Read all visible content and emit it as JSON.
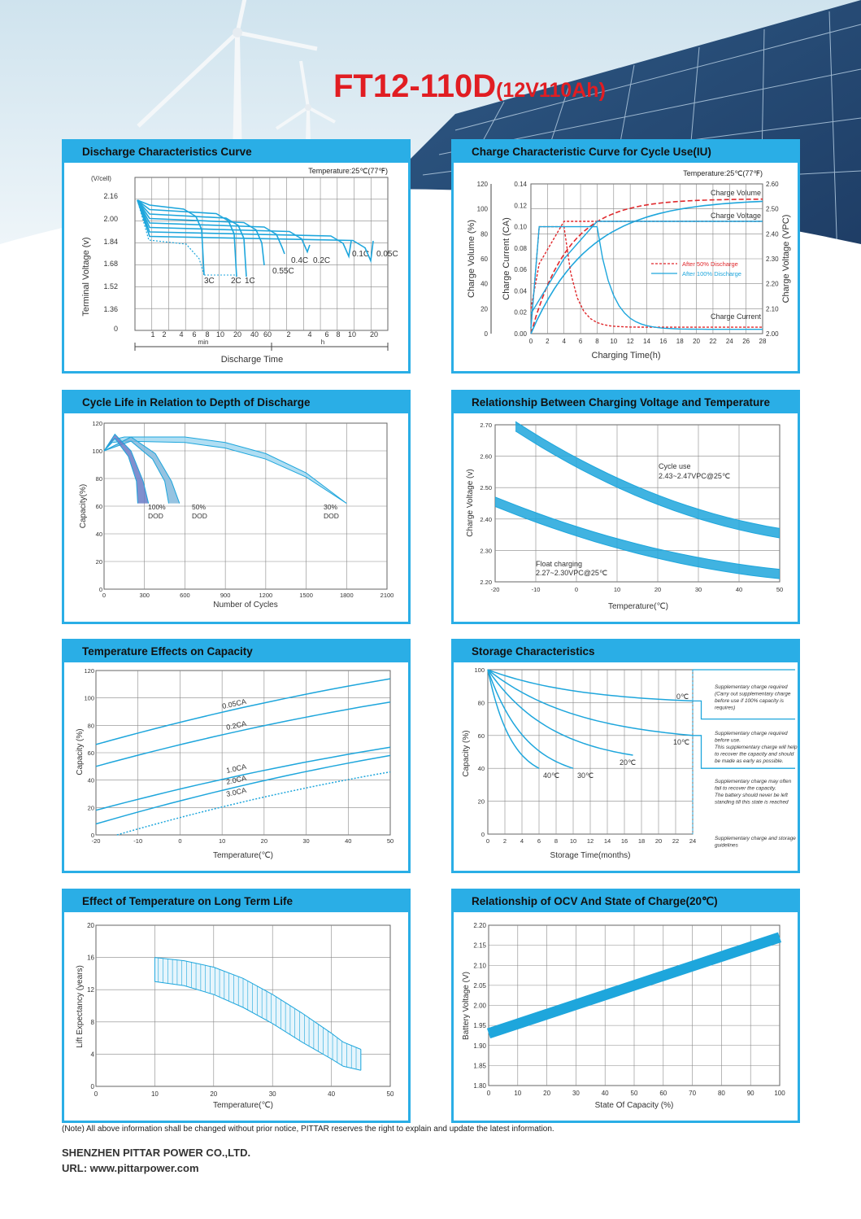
{
  "header": {
    "model": "FT12-110D",
    "spec": "(12V110Ah)"
  },
  "panels": {
    "discharge": {
      "title": "Discharge Characteristics Curve"
    },
    "charge": {
      "title": "Charge Characteristic Curve for Cycle Use(IU)"
    },
    "cycle": {
      "title": "Cycle Life in Relation to Depth of Discharge"
    },
    "chargetemp": {
      "title": "Relationship Between Charging Voltage and Temperature"
    },
    "tempcap": {
      "title": "Temperature Effects on Capacity"
    },
    "storage": {
      "title": "Storage Characteristics"
    },
    "life": {
      "title": "Effect of Temperature on Long Term Life"
    },
    "ocv": {
      "title": "Relationship of OCV And State of Charge(20℃)"
    }
  },
  "footer": {
    "note": "(Note) All above information shall be changed without prior notice, PITTAR reserves the right to explain and update the latest information.",
    "company": "SHENZHEN PITTAR POWER CO.,LTD.",
    "url": "URL: www.pittarpower.com"
  },
  "colors": {
    "accent": "#2aaee6",
    "title": "#e11d22",
    "curve": "#1ea6dc",
    "red": "#e0282c"
  },
  "chart_data": [
    {
      "id": "discharge",
      "type": "line",
      "note": "Temperature:25℃(77℉)",
      "ylabel": "Terminal Voltage  (v)",
      "yunit": "(V/cell)",
      "xlabel": "Discharge  Time",
      "yticks": [
        "2.16",
        "2.00",
        "1.84",
        "1.68",
        "1.52",
        "1.36",
        "0"
      ],
      "xticks_min": [
        "1",
        "2",
        "4",
        "6",
        "8",
        "10",
        "20",
        "40",
        "60"
      ],
      "xticks_h": [
        "2",
        "4",
        "6",
        "8",
        "10",
        "20"
      ],
      "unit_min": "min",
      "unit_h": "h",
      "series": [
        {
          "name": "3C",
          "end_voltage": 1.6
        },
        {
          "name": "2C",
          "end_voltage": 1.6
        },
        {
          "name": "1C",
          "end_voltage": 1.6
        },
        {
          "name": "0.55C",
          "end_voltage": 1.65
        },
        {
          "name": "0.4C",
          "end_voltage": 1.7
        },
        {
          "name": "0.2C",
          "end_voltage": 1.75
        },
        {
          "name": "0.1C",
          "end_voltage": 1.8
        },
        {
          "name": "0.05C",
          "end_voltage": 1.8
        }
      ]
    },
    {
      "id": "charge",
      "type": "line",
      "note": "Temperature:25℃(77℉)",
      "xlabel": "Charging Time(h)",
      "ylabel_left1": "Charge Volume (%)",
      "ylabel_left2": "Charge Current (CA)",
      "ylabel_right": "Charge Voltage (VPC)",
      "x": [
        0,
        2,
        4,
        6,
        8,
        10,
        12,
        14,
        16,
        18,
        20,
        22,
        24,
        26,
        28
      ],
      "volume_ticks": [
        "0",
        "20",
        "40",
        "60",
        "80",
        "100",
        "120"
      ],
      "current_ticks": [
        "0.00",
        "0.02",
        "0.04",
        "0.06",
        "0.08",
        "0.10",
        "0.12",
        "0.14"
      ],
      "voltage_ticks": [
        "2.00",
        "2.10",
        "2.20",
        "2.30",
        "2.40",
        "2.50",
        "2.60"
      ],
      "labels": {
        "volume": "Charge Volume",
        "voltage": "Charge Voltage",
        "current": "Charge Current"
      },
      "legend": [
        "After 50% Discharge",
        "After 100% Discharge"
      ]
    },
    {
      "id": "cycle",
      "type": "line",
      "xlabel": "Number of Cycles",
      "ylabel": "Capacity(%)",
      "x": [
        0,
        300,
        600,
        900,
        1200,
        1500,
        1800,
        2100
      ],
      "yticks": [
        0,
        20,
        40,
        60,
        80,
        100,
        120
      ],
      "series": [
        {
          "name": "100% DOD",
          "end_cycles": 320
        },
        {
          "name": "50% DOD",
          "end_cycles": 550
        },
        {
          "name": "30% DOD",
          "end_cycles": 1800
        }
      ],
      "labels": [
        [
          "100%",
          "DOD"
        ],
        [
          "50%",
          "DOD"
        ],
        [
          "30%",
          "DOD"
        ]
      ]
    },
    {
      "id": "chargetemp",
      "type": "area",
      "xlabel": "Temperature(℃)",
      "ylabel": "Charge Voltage  (v)",
      "x": [
        -20,
        -10,
        0,
        10,
        20,
        30,
        40,
        50
      ],
      "yticks": [
        "2.20",
        "2.30",
        "2.40",
        "2.50",
        "2.60",
        "2.70"
      ],
      "labels": {
        "cycle_name": "Cycle use",
        "cycle_range": "2.43~2.47VPC@25℃",
        "float_name": "Float charging",
        "float_range": "2.27~2.30VPC@25℃"
      },
      "series": [
        {
          "name": "Cycle use",
          "t": [
            -15,
            50
          ],
          "v_upper": [
            2.71,
            2.37
          ],
          "v_lower": [
            2.68,
            2.34
          ]
        },
        {
          "name": "Float charging",
          "t": [
            -20,
            50
          ],
          "v_upper": [
            2.47,
            2.24
          ],
          "v_lower": [
            2.44,
            2.21
          ]
        }
      ]
    },
    {
      "id": "tempcap",
      "type": "line",
      "xlabel": "Temperature(℃)",
      "ylabel": "Capacity  (%)",
      "x": [
        -20,
        -10,
        0,
        10,
        20,
        30,
        40,
        50
      ],
      "yticks": [
        0,
        20,
        40,
        60,
        80,
        100,
        120
      ],
      "series": [
        {
          "name": "0.05CA",
          "t": [
            -20,
            50
          ],
          "c": [
            66,
            114
          ]
        },
        {
          "name": "0.2CA",
          "t": [
            -20,
            50
          ],
          "c": [
            50,
            97
          ]
        },
        {
          "name": "1.0CA",
          "t": [
            -20,
            50
          ],
          "c": [
            18,
            64
          ]
        },
        {
          "name": "2.0CA",
          "t": [
            -20,
            50
          ],
          "c": [
            8,
            58
          ]
        },
        {
          "name": "3.0CA",
          "t": [
            -15,
            50
          ],
          "c": [
            0,
            46
          ]
        }
      ]
    },
    {
      "id": "storage",
      "type": "line",
      "xlabel": "Storage  Time(months)",
      "ylabel": "Capacity  (%)",
      "x": [
        0,
        2,
        4,
        6,
        8,
        10,
        12,
        14,
        16,
        18,
        20,
        22,
        24
      ],
      "yticks": [
        0,
        20,
        40,
        60,
        80,
        100
      ],
      "series": [
        {
          "name": "0℃",
          "end": [
            24,
            81
          ]
        },
        {
          "name": "10℃",
          "end": [
            24,
            60
          ]
        },
        {
          "name": "20℃",
          "end": [
            17,
            48
          ]
        },
        {
          "name": "30℃",
          "end": [
            10,
            40
          ]
        },
        {
          "name": "40℃",
          "end": [
            6,
            40
          ]
        }
      ],
      "notes": [
        [
          "Supplementary charge required",
          "(Carry out supplementary charge",
          "before use if 100% capacity is",
          "requires)"
        ],
        [
          "Supplementary charge required",
          "before use.",
          "This supplementary charge will help",
          "to recover the capacity and should",
          "be made  as early as possible."
        ],
        [
          "Supplementary charge may often",
          "fail to recover the capacity.",
          "The battery should never be left",
          "standing till this state is reached"
        ],
        [
          "Supplementary charge and storage",
          "guidelines"
        ]
      ]
    },
    {
      "id": "life",
      "type": "area",
      "xlabel": "Temperature(℃)",
      "ylabel": "Lift Expectancy  (years)",
      "x": [
        0,
        10,
        20,
        30,
        40,
        50
      ],
      "yticks": [
        0,
        4,
        8,
        12,
        16,
        20
      ],
      "band": {
        "t": [
          10,
          15,
          20,
          25,
          30,
          35,
          40,
          42,
          45
        ],
        "upper": [
          16,
          15.6,
          14.8,
          13.4,
          11.4,
          9.1,
          6.6,
          5.5,
          4.6
        ],
        "lower": [
          13,
          12.5,
          11.4,
          9.8,
          7.8,
          5.5,
          3.4,
          2.5,
          2
        ]
      }
    },
    {
      "id": "ocv",
      "type": "line",
      "xlabel": "State Of Capacity (%)",
      "ylabel": "Battery Voltage (V)",
      "x": [
        0,
        10,
        20,
        30,
        40,
        50,
        60,
        70,
        80,
        90,
        100
      ],
      "yticks": [
        "1.80",
        "1.85",
        "1.90",
        "1.95",
        "2.00",
        "2.05",
        "2.10",
        "2.15",
        "2.20"
      ],
      "series": [
        {
          "name": "OCV",
          "soc": [
            0,
            100
          ],
          "v": [
            1.93,
            2.17
          ]
        }
      ]
    }
  ]
}
